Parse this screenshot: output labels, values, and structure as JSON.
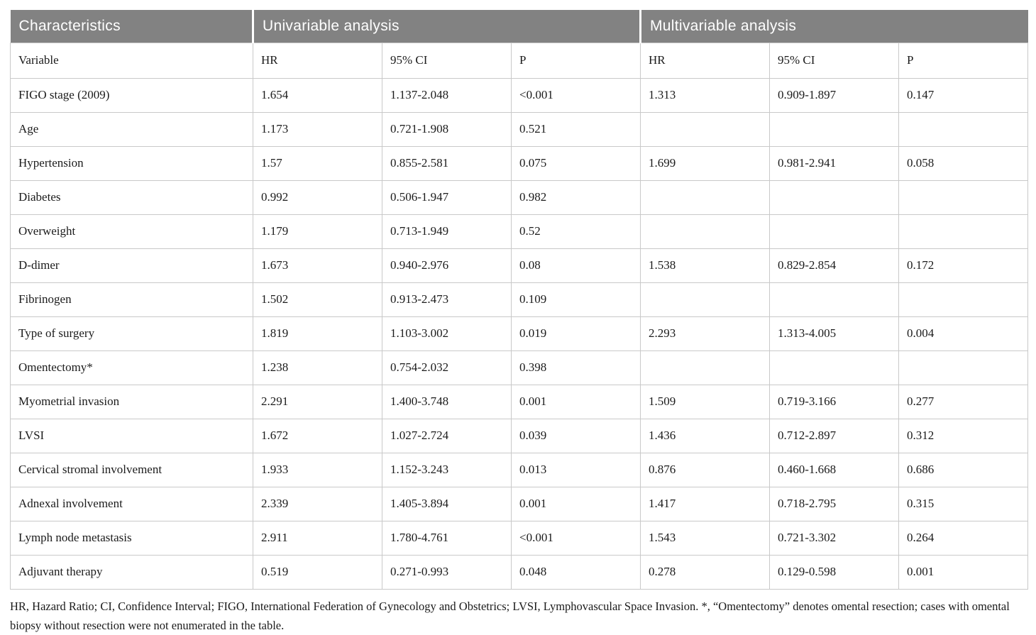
{
  "table": {
    "sections": [
      {
        "label": "Characteristics"
      },
      {
        "label": "Univariable analysis"
      },
      {
        "label": "Multivariable analysis"
      }
    ],
    "sub_headers": [
      "Variable",
      "HR",
      "95% CI",
      "P",
      "HR",
      "95% CI",
      "P"
    ],
    "rows": [
      {
        "cells": [
          "FIGO stage (2009)",
          "1.654",
          "1.137-2.048",
          "<0.001",
          "1.313",
          "0.909-1.897",
          "0.147"
        ]
      },
      {
        "cells": [
          "Age",
          "1.173",
          "0.721-1.908",
          "0.521",
          "",
          "",
          ""
        ]
      },
      {
        "cells": [
          "Hypertension",
          "1.57",
          "0.855-2.581",
          "0.075",
          "1.699",
          "0.981-2.941",
          "0.058"
        ]
      },
      {
        "cells": [
          "Diabetes",
          "0.992",
          "0.506-1.947",
          "0.982",
          "",
          "",
          ""
        ]
      },
      {
        "cells": [
          "Overweight",
          "1.179",
          "0.713-1.949",
          "0.52",
          "",
          "",
          ""
        ]
      },
      {
        "cells": [
          "D-dimer",
          "1.673",
          "0.940-2.976",
          "0.08",
          "1.538",
          "0.829-2.854",
          "0.172"
        ]
      },
      {
        "cells": [
          "Fibrinogen",
          "1.502",
          "0.913-2.473",
          "0.109",
          "",
          "",
          ""
        ]
      },
      {
        "cells": [
          "Type of surgery",
          "1.819",
          "1.103-3.002",
          "0.019",
          "2.293",
          "1.313-4.005",
          "0.004"
        ]
      },
      {
        "cells": [
          "Omentectomy*",
          "1.238",
          "0.754-2.032",
          "0.398",
          "",
          "",
          ""
        ]
      },
      {
        "cells": [
          "Myometrial invasion",
          "2.291",
          "1.400-3.748",
          "0.001",
          "1.509",
          "0.719-3.166",
          "0.277"
        ]
      },
      {
        "cells": [
          "LVSI",
          "1.672",
          "1.027-2.724",
          "0.039",
          "1.436",
          "0.712-2.897",
          "0.312"
        ]
      },
      {
        "cells": [
          "Cervical stromal involvement",
          "1.933",
          "1.152-3.243",
          "0.013",
          "0.876",
          "0.460-1.668",
          "0.686"
        ]
      },
      {
        "cells": [
          "Adnexal involvement",
          "2.339",
          "1.405-3.894",
          "0.001",
          "1.417",
          "0.718-2.795",
          "0.315"
        ]
      },
      {
        "cells": [
          "Lymph node metastasis",
          "2.911",
          "1.780-4.761",
          "<0.001",
          "1.543",
          "0.721-3.302",
          "0.264"
        ]
      },
      {
        "cells": [
          "Adjuvant therapy",
          "0.519",
          "0.271-0.993",
          "0.048",
          "0.278",
          "0.129-0.598",
          "0.001"
        ]
      }
    ]
  },
  "footnote": {
    "text": "HR, Hazard Ratio; CI, Confidence Interval; FIGO, International Federation of Gynecology and Obstetrics; LVSI, Lymphovascular Space Invasion. *, “Omentectomy” denotes omental resection; cases with omental biopsy without resection were not enumerated in the table."
  },
  "colors": {
    "header_bg": "#828282",
    "header_text": "#ffffff",
    "border": "#c9c9c9",
    "body_text": "#1b1b1b"
  }
}
